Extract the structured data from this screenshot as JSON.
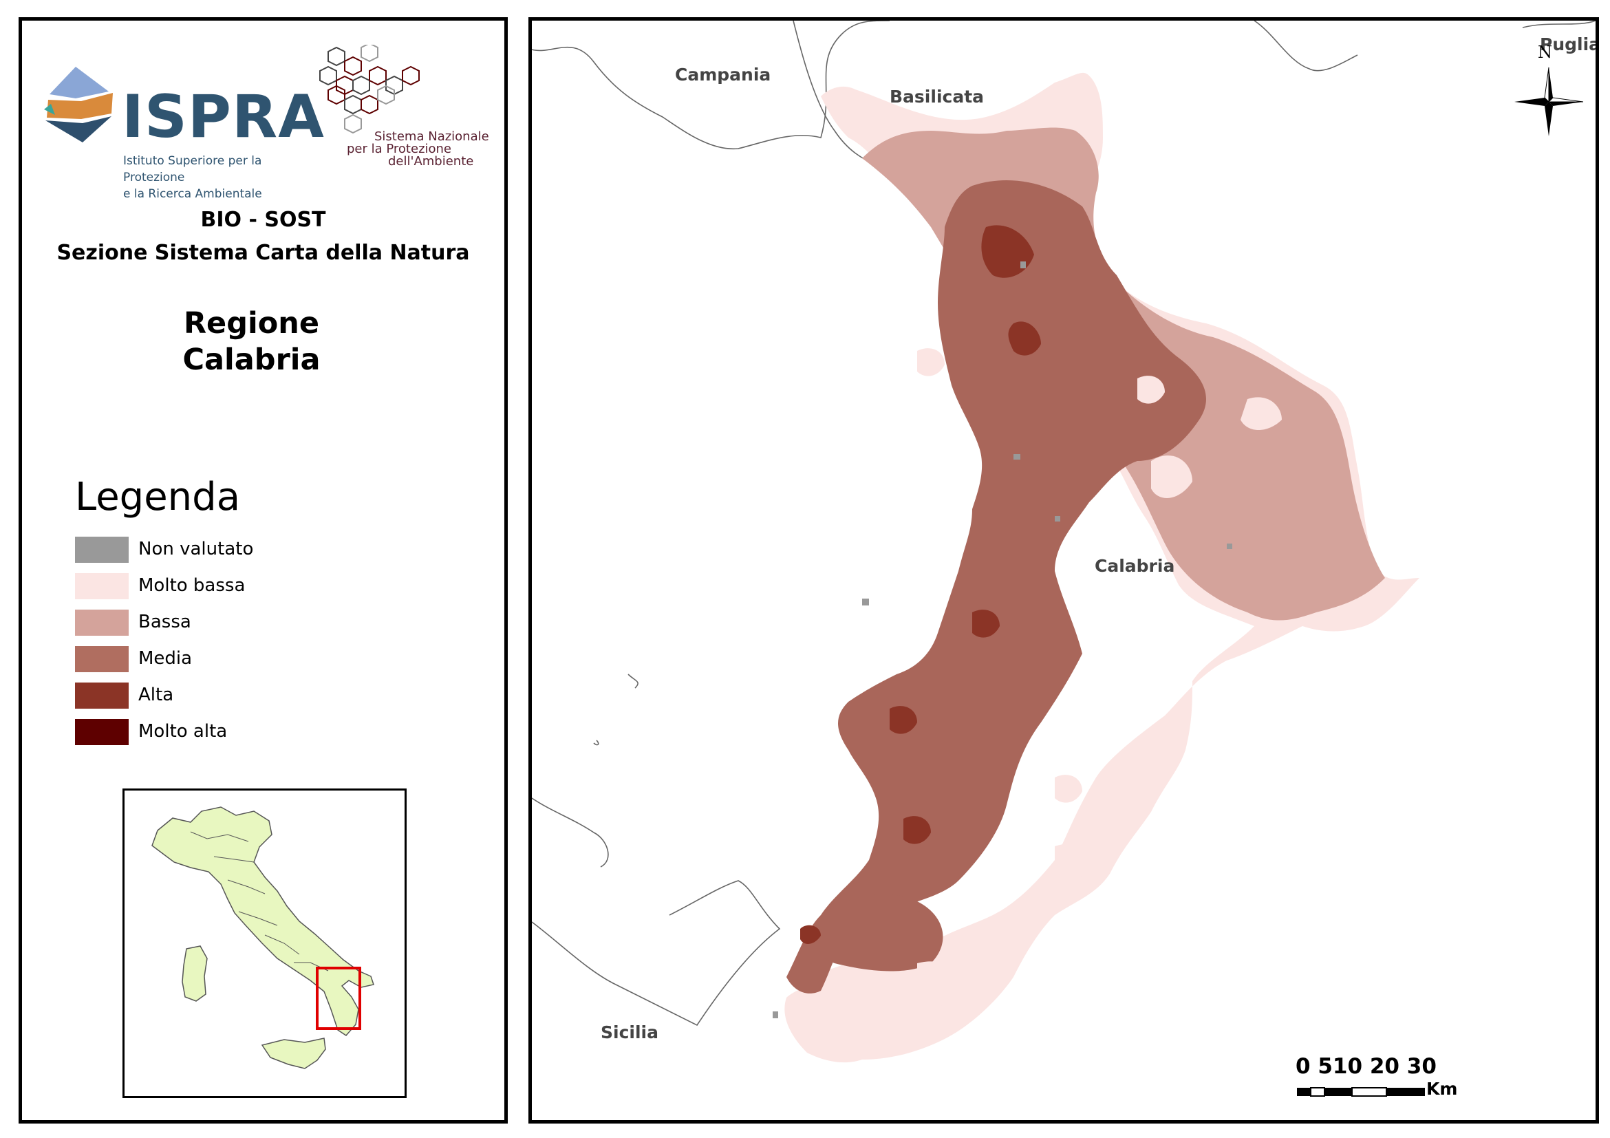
{
  "header": {
    "logo_name": "ISPRA",
    "logo_subtitle": [
      "Istituto Superiore per la Protezione",
      "e la Ricerca Ambientale"
    ],
    "snpa_lines": [
      "Sistema Nazionale",
      "per la Protezione",
      "dell'Ambiente"
    ],
    "org_line1": "BIO - SOST",
    "org_line2": "Sezione Sistema Carta della Natura",
    "region_line1": "Regione",
    "region_line2": "Calabria"
  },
  "legend": {
    "title": "Legenda",
    "items": [
      {
        "label": "Non valutato",
        "color": "#999999"
      },
      {
        "label": "Molto bassa",
        "color": "#fbe5e3"
      },
      {
        "label": "Bassa",
        "color": "#d4a39b"
      },
      {
        "label": "Media",
        "color": "#b06e60"
      },
      {
        "label": "Alta",
        "color": "#8b3426"
      },
      {
        "label": "Molto alta",
        "color": "#5e0000"
      }
    ]
  },
  "map": {
    "labels": {
      "campania": "Campania",
      "basilicata": "Basilicata",
      "puglia": "Puglia",
      "calabria": "Calabria",
      "sicilia": "Sicilia"
    },
    "north_label": "N",
    "scale_labels": "0 510  20  30",
    "scale_unit": "Km"
  },
  "inset": {
    "land_color": "#e8f7c0",
    "highlight_color": "#e00000"
  }
}
